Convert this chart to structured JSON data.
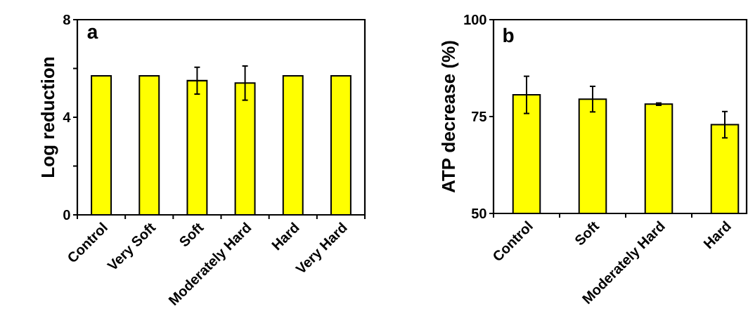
{
  "chart_data": [
    {
      "type": "bar",
      "categories": [
        "Control",
        "Very Soft",
        "Soft",
        "Moderately Hard",
        "Hard",
        "Very Hard"
      ],
      "values": [
        5.7,
        5.7,
        5.5,
        5.4,
        5.7,
        5.7
      ],
      "errors": [
        null,
        null,
        0.55,
        0.7,
        null,
        null
      ],
      "color": "#ffff00",
      "ylabel": "Log reduction",
      "ylim": [
        0,
        8
      ],
      "yticks": [
        0,
        {
          "value": 2,
          "label": null
        },
        4,
        {
          "value": 6,
          "label": null
        },
        8
      ],
      "annotations": [
        "a"
      ]
    },
    {
      "type": "bar",
      "categories": [
        "Control",
        "Soft",
        "Moderately Hard",
        "Hard"
      ],
      "values": [
        80.6,
        79.5,
        78.2,
        72.9
      ],
      "errors": [
        4.8,
        3.3,
        0.3,
        3.4
      ],
      "color": "#ffff00",
      "ylabel": "ATP decrease (%)",
      "ylim": [
        50,
        100
      ],
      "yticks": [
        50,
        75,
        100
      ],
      "annotations": [
        "b"
      ]
    }
  ]
}
